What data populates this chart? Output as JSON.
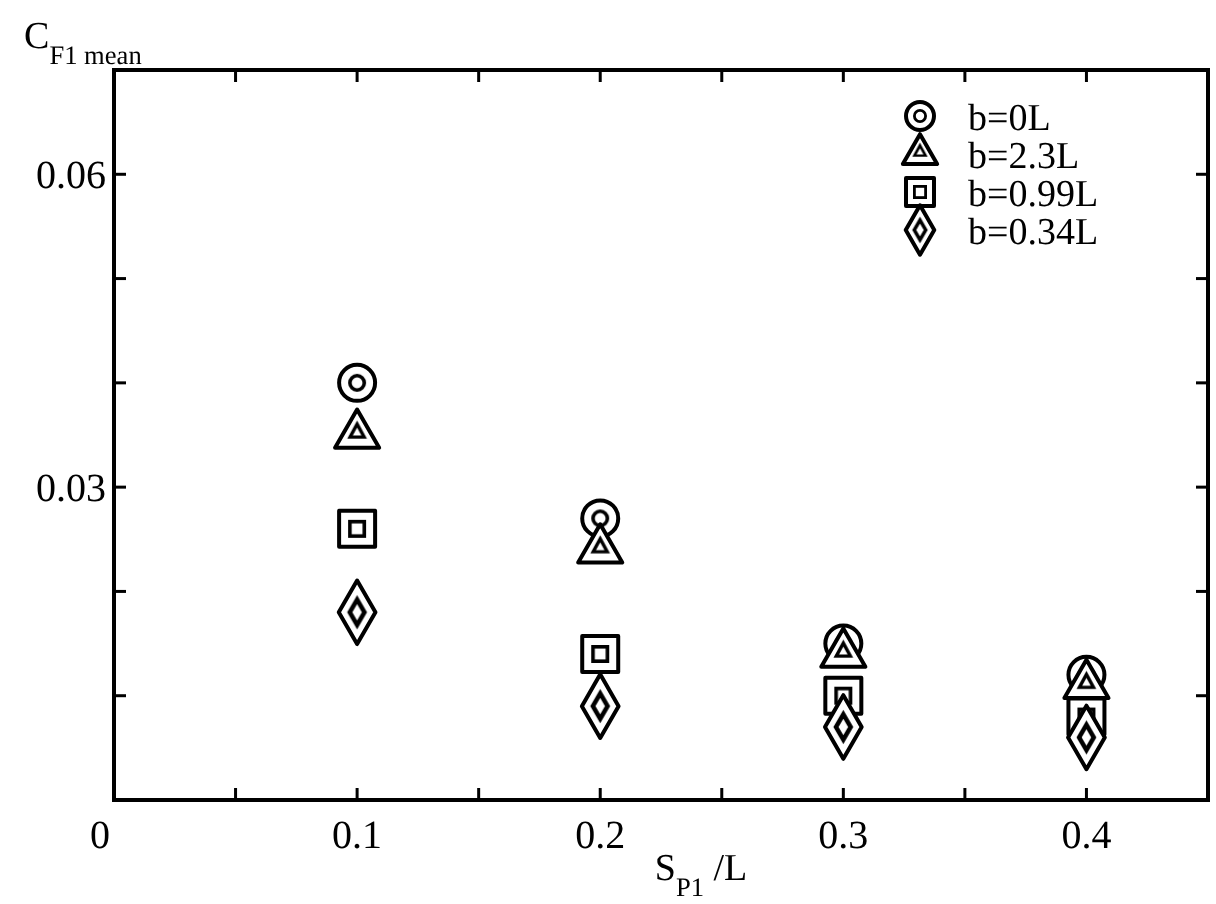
{
  "chart_data": {
    "type": "scatter",
    "xlabel": "S$_{P1}$ /L",
    "ylabel": "C$_{F1 mean}$",
    "x": [
      0.1,
      0.2,
      0.3,
      0.4
    ],
    "xlim": [
      0,
      0.45
    ],
    "xticks": [
      0,
      {
        "value": 0.05,
        "label": null
      },
      0.1,
      {
        "value": 0.15,
        "label": null
      },
      0.2,
      {
        "value": 0.25,
        "label": null
      },
      0.3,
      {
        "value": 0.35,
        "label": null
      },
      0.4
    ],
    "ylim": [
      0,
      0.07
    ],
    "yticks": [
      {
        "value": 0,
        "label": null
      },
      {
        "value": 0.01,
        "label": null
      },
      {
        "value": 0.02,
        "label": null
      },
      0.03,
      {
        "value": 0.04,
        "label": null
      },
      {
        "value": 0.05,
        "label": null
      },
      0.06
    ],
    "legend": "top right",
    "grid": false,
    "series": [
      {
        "name": "b=0L",
        "color": "#000000",
        "marker": "circle",
        "values": [
          0.04,
          0.027,
          0.015,
          0.012
        ]
      },
      {
        "name": "b=2.3L",
        "color": "#000000",
        "marker": "triangle",
        "values": [
          0.035,
          0.024,
          0.014,
          0.011
        ]
      },
      {
        "name": "b=0.99L",
        "color": "#000000",
        "marker": "square",
        "values": [
          0.026,
          0.014,
          0.01,
          0.008
        ]
      },
      {
        "name": "b=0.34L",
        "color": "#000000",
        "marker": "diamond",
        "values": [
          0.018,
          0.009,
          0.007,
          0.006
        ]
      }
    ]
  }
}
